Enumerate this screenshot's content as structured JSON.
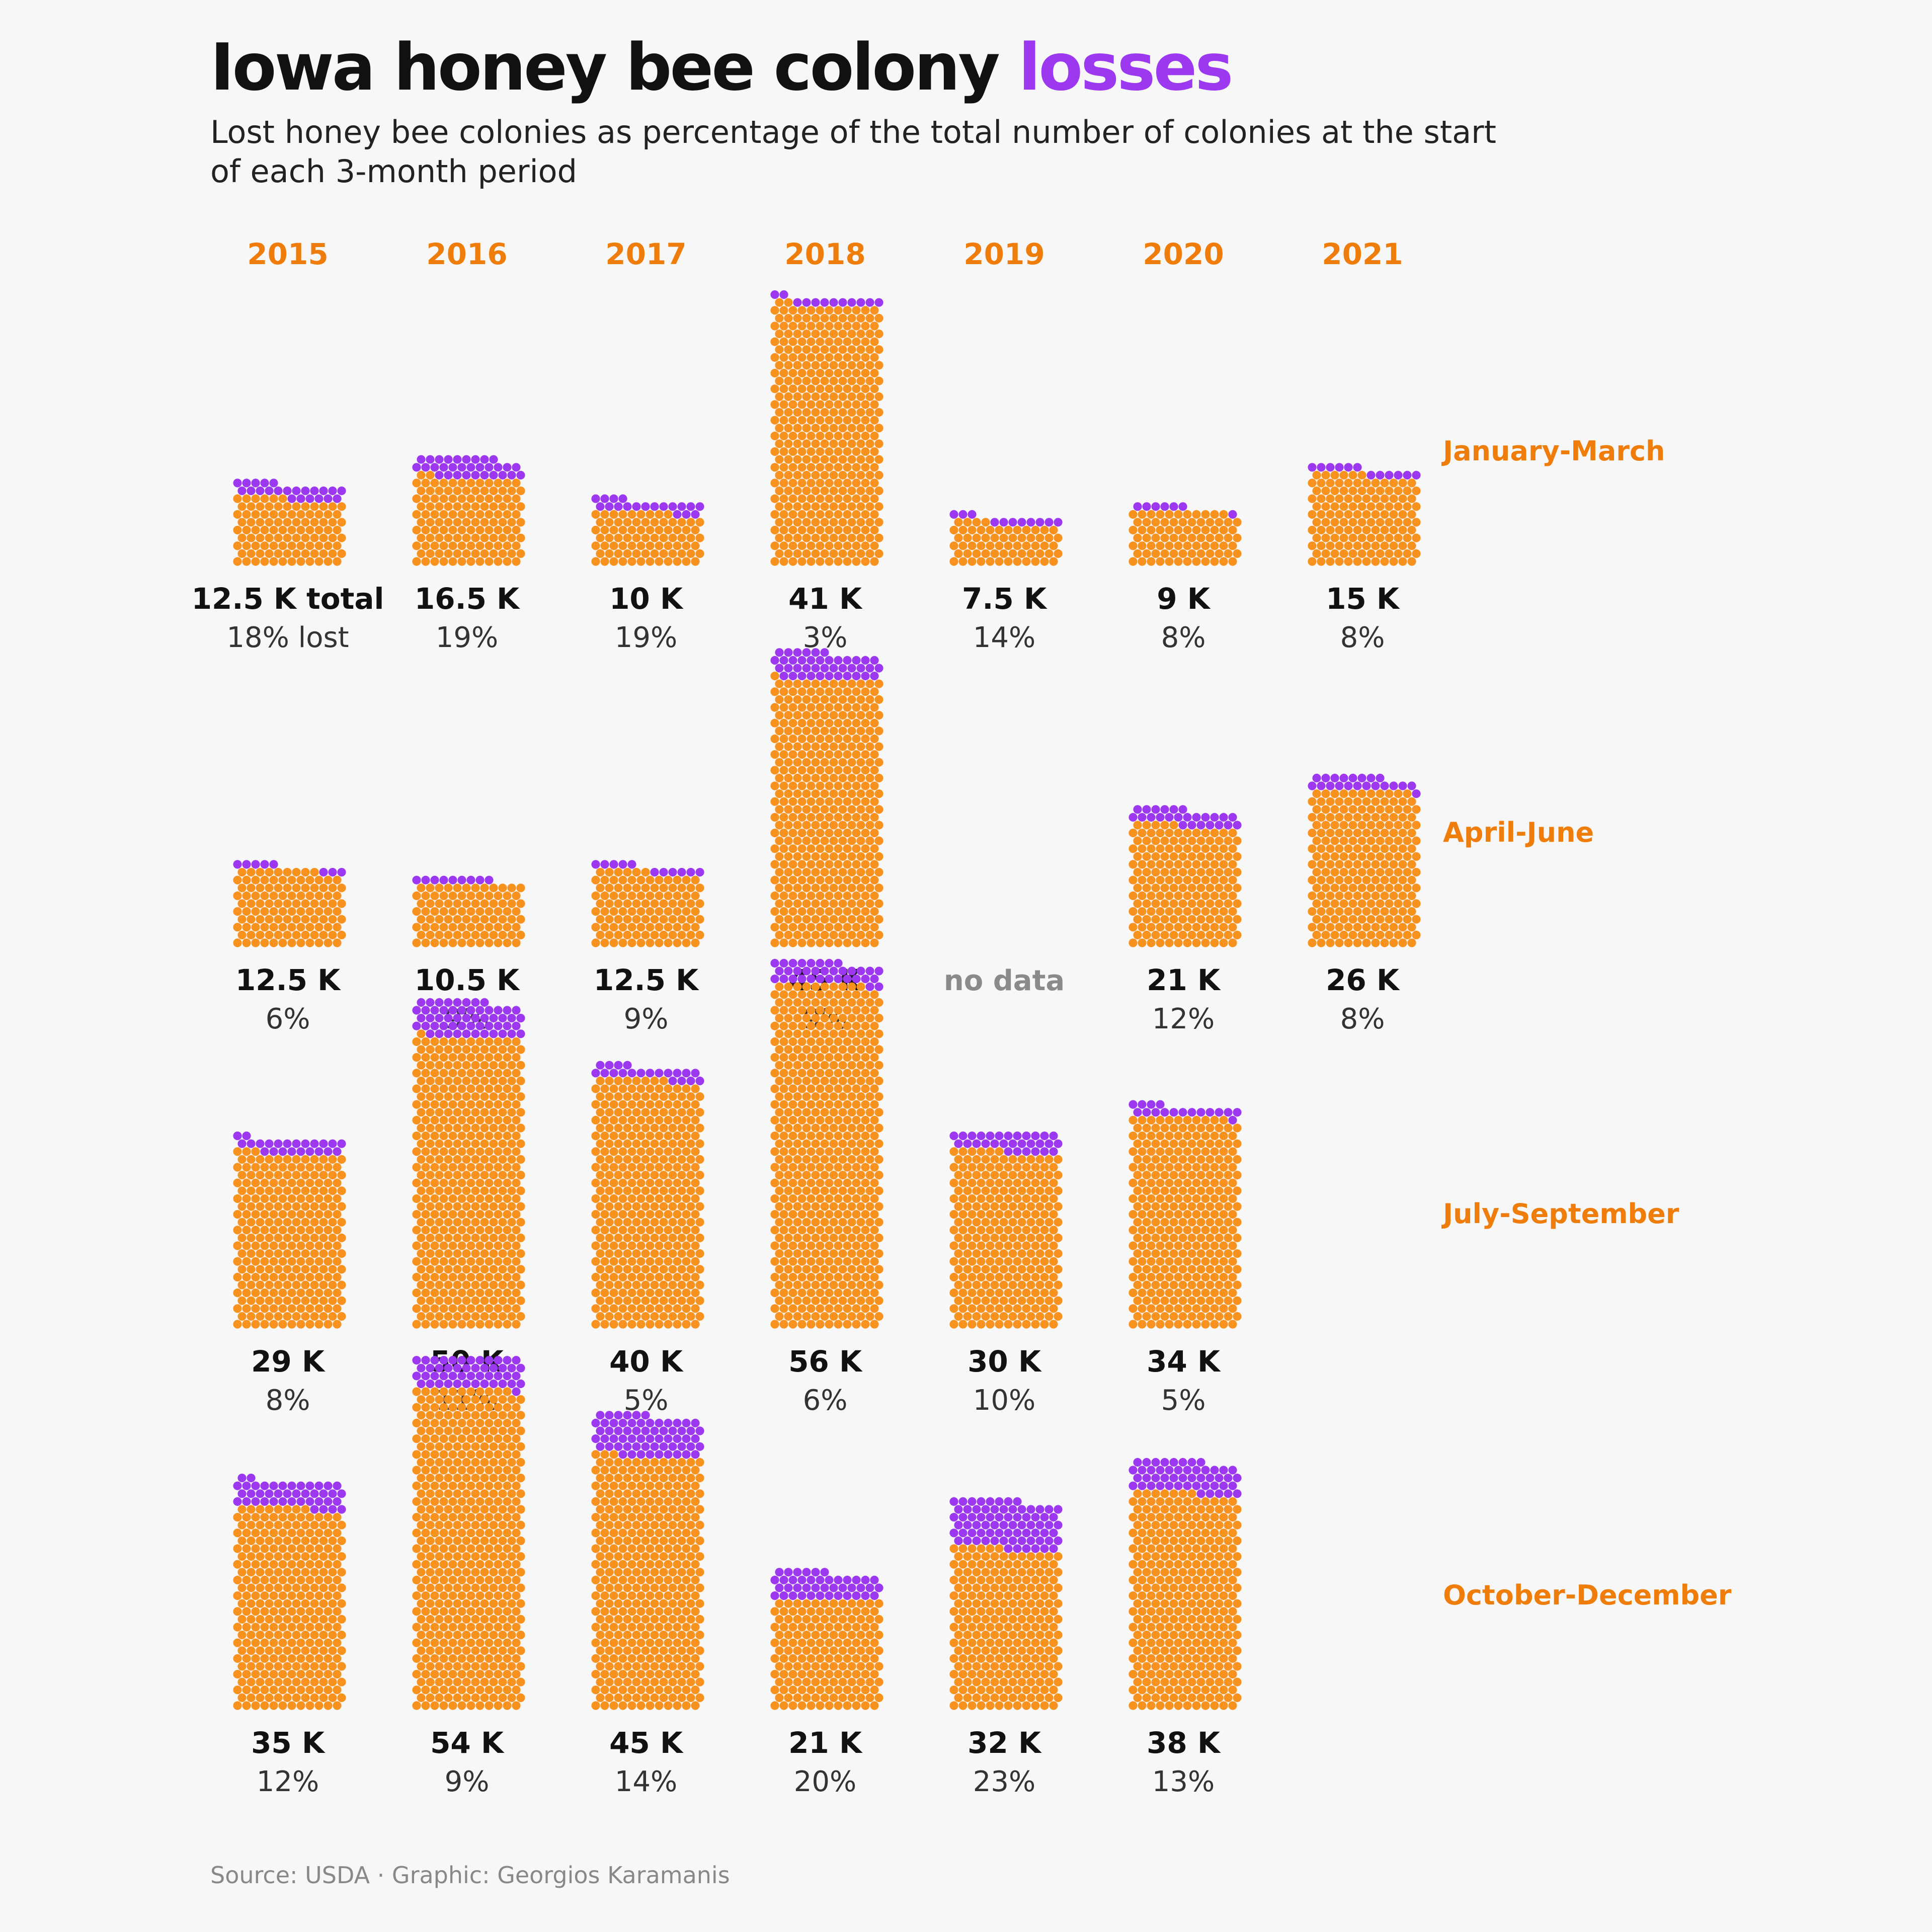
{
  "title": {
    "prefix": "Iowa honey bee colony",
    "highlight": "losses"
  },
  "subtitle": "Lost honey bee colonies as percentage of the total number of colonies at the start of each 3-month period",
  "source": "Source: USDA · Graphic: Georgios Karamanis",
  "colors": {
    "orange": "#f7921e",
    "purple": "#9b38f0",
    "label_orange": "#ee7d0b",
    "text": "#111111",
    "muted": "#8a8a8a"
  },
  "chart_data": {
    "type": "waffle",
    "years": [
      "2015",
      "2016",
      "2017",
      "2018",
      "2019",
      "2020",
      "2021"
    ],
    "periods": [
      "January-March",
      "April-June",
      "July-September",
      "October-December"
    ],
    "cells": [
      [
        {
          "total": 12500,
          "label": "12.5 K total",
          "pct": 18,
          "pct_label": "18% lost"
        },
        {
          "total": 16500,
          "label": "16.5 K",
          "pct": 19,
          "pct_label": "19%"
        },
        {
          "total": 10000,
          "label": "10 K",
          "pct": 19,
          "pct_label": "19%"
        },
        {
          "total": 41000,
          "label": "41 K",
          "pct": 3,
          "pct_label": "3%"
        },
        {
          "total": 7500,
          "label": "7.5 K",
          "pct": 14,
          "pct_label": "14%"
        },
        {
          "total": 9000,
          "label": "9 K",
          "pct": 8,
          "pct_label": "8%"
        },
        {
          "total": 15000,
          "label": "15 K",
          "pct": 8,
          "pct_label": "8%"
        }
      ],
      [
        {
          "total": 12500,
          "label": "12.5 K",
          "pct": 6,
          "pct_label": "6%"
        },
        {
          "total": 10500,
          "label": "10.5 K",
          "pct": 9,
          "pct_label": "9%"
        },
        {
          "total": 12500,
          "label": "12.5 K",
          "pct": 9,
          "pct_label": "9%"
        },
        {
          "total": 45000,
          "label": "45 K",
          "pct": 9,
          "pct_label": "9%"
        },
        {
          "total": null,
          "label": "no data",
          "pct": null,
          "pct_label": ""
        },
        {
          "total": 21000,
          "label": "21 K",
          "pct": 12,
          "pct_label": "12%"
        },
        {
          "total": 26000,
          "label": "26 K",
          "pct": 8,
          "pct_label": "8%"
        }
      ],
      [
        {
          "total": 29000,
          "label": "29 K",
          "pct": 8,
          "pct_label": "8%"
        },
        {
          "total": 50000,
          "label": "50 K",
          "pct": 11,
          "pct_label": "11%"
        },
        {
          "total": 40000,
          "label": "40 K",
          "pct": 5,
          "pct_label": "5%"
        },
        {
          "total": 56000,
          "label": "56 K",
          "pct": 6,
          "pct_label": "6%"
        },
        {
          "total": 30000,
          "label": "30 K",
          "pct": 10,
          "pct_label": "10%"
        },
        {
          "total": 34000,
          "label": "34 K",
          "pct": 5,
          "pct_label": "5%"
        },
        null
      ],
      [
        {
          "total": 35000,
          "label": "35 K",
          "pct": 12,
          "pct_label": "12%"
        },
        {
          "total": 54000,
          "label": "54 K",
          "pct": 9,
          "pct_label": "9%"
        },
        {
          "total": 45000,
          "label": "45 K",
          "pct": 14,
          "pct_label": "14%"
        },
        {
          "total": 21000,
          "label": "21 K",
          "pct": 20,
          "pct_label": "20%"
        },
        {
          "total": 32000,
          "label": "32 K",
          "pct": 23,
          "pct_label": "23%"
        },
        {
          "total": 38000,
          "label": "38 K",
          "pct": 13,
          "pct_label": "13%"
        },
        null
      ]
    ]
  }
}
